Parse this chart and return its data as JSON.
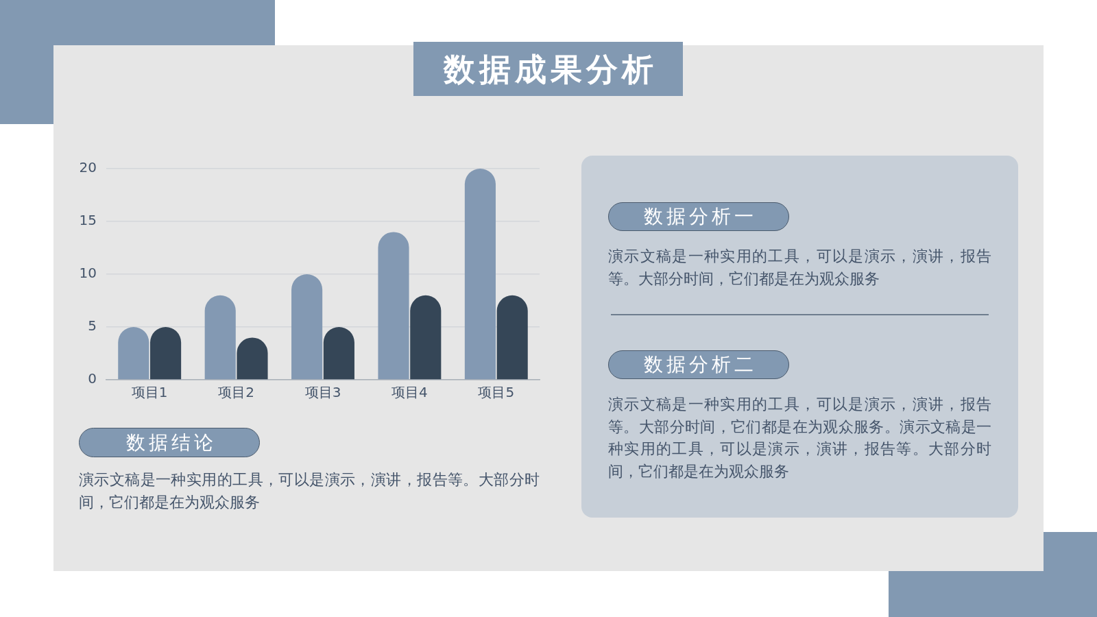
{
  "chart_data": {
    "type": "bar",
    "title": "数据成果分析",
    "categories": [
      "项目1",
      "项目2",
      "项目3",
      "项目4",
      "项目5"
    ],
    "series": [
      {
        "color": "#8399b3",
        "values": [
          5,
          8,
          10,
          14,
          20
        ]
      },
      {
        "color": "#354657",
        "values": [
          5,
          4,
          5,
          8,
          8
        ]
      }
    ],
    "ylim": [
      0,
      20
    ],
    "yticks": [
      0,
      5,
      10,
      15,
      20
    ],
    "grid": "y",
    "legend": false,
    "annotations": [
      "数据结论",
      "演示文稿是一种实用的工具，可以是演示，演讲，报告等。大部分时间，它们都是在为观众服务",
      "数据分析一",
      "演示文稿是一种实用的工具，可以是演示，演讲，报告等。大部分时间，它们都是在为观众服务",
      "数据分析二",
      "演示文稿是一种实用的工具，可以是演示，演讲，报告等。大部分时间，它们都是在为观众服务。演示文稿是一种实用的工具，可以是演示，演讲，报告等。大部分时间，它们都是在为观众服务"
    ]
  }
}
